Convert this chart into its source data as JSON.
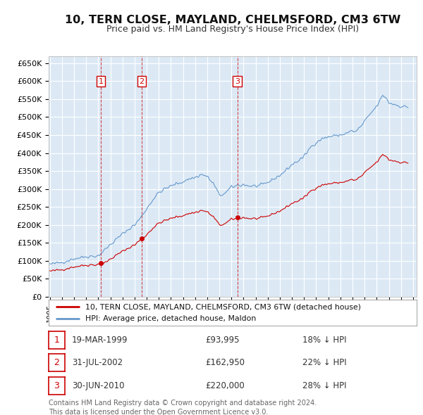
{
  "title": "10, TERN CLOSE, MAYLAND, CHELMSFORD, CM3 6TW",
  "subtitle": "Price paid vs. HM Land Registry's House Price Index (HPI)",
  "background_color": "#ffffff",
  "plot_bg_color": "#dce9f5",
  "grid_color": "#ffffff",
  "red_line_label": "10, TERN CLOSE, MAYLAND, CHELMSFORD, CM3 6TW (detached house)",
  "blue_line_label": "HPI: Average price, detached house, Maldon",
  "transactions": [
    {
      "num": 1,
      "date": "19-MAR-1999",
      "price": 93995,
      "pct": "18%",
      "x_year": 1999.21
    },
    {
      "num": 2,
      "date": "31-JUL-2002",
      "price": 162950,
      "pct": "22%",
      "x_year": 2002.58
    },
    {
      "num": 3,
      "date": "30-JUN-2010",
      "price": 220000,
      "pct": "28%",
      "x_year": 2010.49
    }
  ],
  "footer_line1": "Contains HM Land Registry data © Crown copyright and database right 2024.",
  "footer_line2": "This data is licensed under the Open Government Licence v3.0.",
  "ylim": [
    0,
    670000
  ],
  "xlim_start": 1994.9,
  "xlim_end": 2025.3,
  "yticks": [
    0,
    50000,
    100000,
    150000,
    200000,
    250000,
    300000,
    350000,
    400000,
    450000,
    500000,
    550000,
    600000,
    650000
  ],
  "ytick_labels": [
    "£0",
    "£50K",
    "£100K",
    "£150K",
    "£200K",
    "£250K",
    "£300K",
    "£350K",
    "£400K",
    "£450K",
    "£500K",
    "£550K",
    "£600K",
    "£650K"
  ],
  "xticks": [
    1995,
    1996,
    1997,
    1998,
    1999,
    2000,
    2001,
    2002,
    2003,
    2004,
    2005,
    2006,
    2007,
    2008,
    2009,
    2010,
    2011,
    2012,
    2013,
    2014,
    2015,
    2016,
    2017,
    2018,
    2019,
    2020,
    2021,
    2022,
    2023,
    2024,
    2025
  ],
  "red_color": "#cc0000",
  "blue_color": "#6699cc",
  "dashed_color": "#cc0000"
}
